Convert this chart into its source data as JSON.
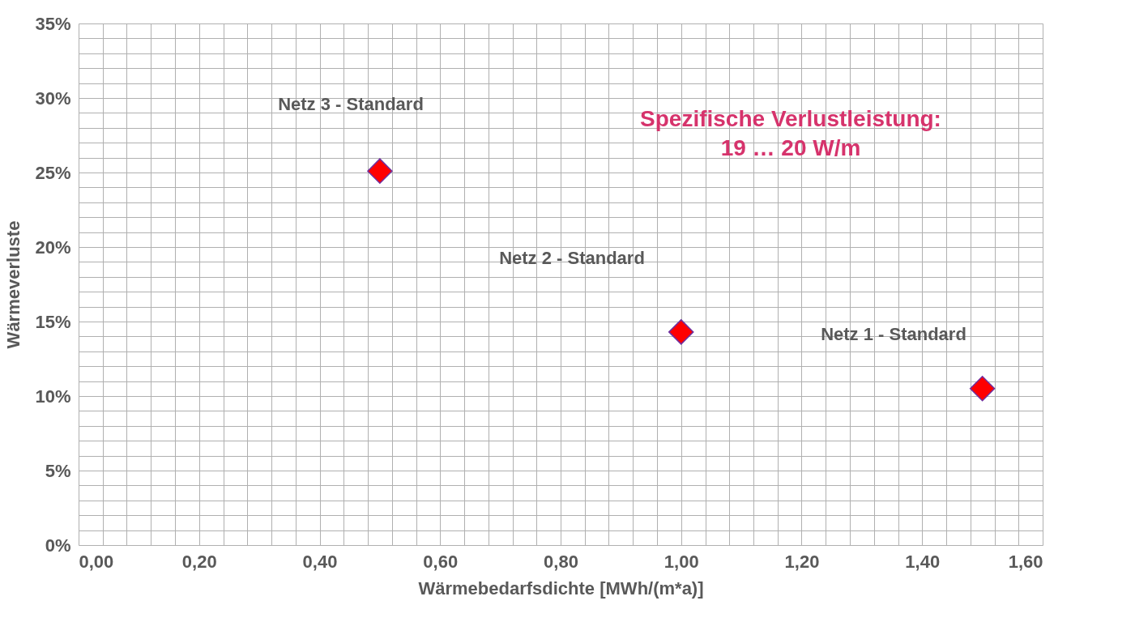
{
  "chart_data": {
    "type": "scatter",
    "xlabel": "Wärmebedarfsdichte  [MWh/(m*a)]",
    "ylabel": "Wärmeverluste",
    "x": [
      0.5,
      1.0,
      1.5
    ],
    "series": [
      {
        "color": "#ff0000",
        "values": [
          25.1,
          14.3,
          10.5
        ]
      }
    ],
    "marker": "diamond",
    "grid": true,
    "xlim": [
      0,
      1.6
    ],
    "ylim": [
      0,
      35
    ],
    "xticks": [
      {
        "value": 0,
        "label": "0,00"
      },
      {
        "value": 0.04,
        "label": null
      },
      {
        "value": 0.08,
        "label": null
      },
      {
        "value": 0.12,
        "label": null
      },
      {
        "value": 0.16,
        "label": null
      },
      {
        "value": 0.2,
        "label": "0,20"
      },
      {
        "value": 0.24,
        "label": null
      },
      {
        "value": 0.28,
        "label": null
      },
      {
        "value": 0.32,
        "label": null
      },
      {
        "value": 0.36,
        "label": null
      },
      {
        "value": 0.4,
        "label": "0,40"
      },
      {
        "value": 0.44,
        "label": null
      },
      {
        "value": 0.48,
        "label": null
      },
      {
        "value": 0.52,
        "label": null
      },
      {
        "value": 0.56,
        "label": null
      },
      {
        "value": 0.6,
        "label": "0,60"
      },
      {
        "value": 0.64,
        "label": null
      },
      {
        "value": 0.68,
        "label": null
      },
      {
        "value": 0.72,
        "label": null
      },
      {
        "value": 0.76,
        "label": null
      },
      {
        "value": 0.8,
        "label": "0,80"
      },
      {
        "value": 0.84,
        "label": null
      },
      {
        "value": 0.88,
        "label": null
      },
      {
        "value": 0.92,
        "label": null
      },
      {
        "value": 0.96,
        "label": null
      },
      {
        "value": 1.0,
        "label": "1,00"
      },
      {
        "value": 1.04,
        "label": null
      },
      {
        "value": 1.08,
        "label": null
      },
      {
        "value": 1.12,
        "label": null
      },
      {
        "value": 1.16,
        "label": null
      },
      {
        "value": 1.2,
        "label": "1,20"
      },
      {
        "value": 1.24,
        "label": null
      },
      {
        "value": 1.28,
        "label": null
      },
      {
        "value": 1.32,
        "label": null
      },
      {
        "value": 1.36,
        "label": null
      },
      {
        "value": 1.4,
        "label": "1,40"
      },
      {
        "value": 1.44,
        "label": null
      },
      {
        "value": 1.48,
        "label": null
      },
      {
        "value": 1.52,
        "label": null
      },
      {
        "value": 1.56,
        "label": null
      },
      {
        "value": 1.6,
        "label": "1,60"
      }
    ],
    "yticks": [
      {
        "value": 0,
        "label": "0%"
      },
      {
        "value": 1,
        "label": null
      },
      {
        "value": 2,
        "label": null
      },
      {
        "value": 3,
        "label": null
      },
      {
        "value": 4,
        "label": null
      },
      {
        "value": 5,
        "label": "5%"
      },
      {
        "value": 6,
        "label": null
      },
      {
        "value": 7,
        "label": null
      },
      {
        "value": 8,
        "label": null
      },
      {
        "value": 9,
        "label": null
      },
      {
        "value": 10,
        "label": "10%"
      },
      {
        "value": 11,
        "label": null
      },
      {
        "value": 12,
        "label": null
      },
      {
        "value": 13,
        "label": null
      },
      {
        "value": 14,
        "label": null
      },
      {
        "value": 15,
        "label": "15%"
      },
      {
        "value": 16,
        "label": null
      },
      {
        "value": 17,
        "label": null
      },
      {
        "value": 18,
        "label": null
      },
      {
        "value": 19,
        "label": null
      },
      {
        "value": 20,
        "label": "20%"
      },
      {
        "value": 21,
        "label": null
      },
      {
        "value": 22,
        "label": null
      },
      {
        "value": 23,
        "label": null
      },
      {
        "value": 24,
        "label": null
      },
      {
        "value": 25,
        "label": "25%"
      },
      {
        "value": 26,
        "label": null
      },
      {
        "value": 27,
        "label": null
      },
      {
        "value": 28,
        "label": null
      },
      {
        "value": 29,
        "label": null
      },
      {
        "value": 30,
        "label": "30%"
      },
      {
        "value": 31,
        "label": null
      },
      {
        "value": 32,
        "label": null
      },
      {
        "value": 33,
        "label": null
      },
      {
        "value": 34,
        "label": null
      },
      {
        "value": 35,
        "label": "35%"
      }
    ],
    "annotations": [
      "Netz 3 - Standard",
      "Netz 2 - Standard",
      "Netz 1 - Standard",
      "Spezifische Verlustleistung:\n19 … 20 W/m"
    ]
  }
}
